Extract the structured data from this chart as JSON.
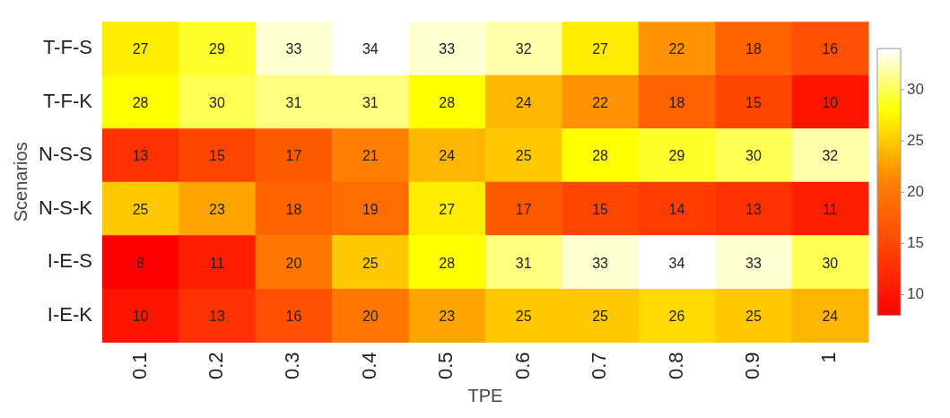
{
  "chart_data": {
    "type": "heatmap",
    "xlabel": "TPE",
    "ylabel": "Scenarios",
    "categories": [
      "0.1",
      "0.2",
      "0.3",
      "0.4",
      "0.5",
      "0.6",
      "0.7",
      "0.8",
      "0.9",
      "1"
    ],
    "y_categories": [
      "T-F-S",
      "T-F-K",
      "N-S-S",
      "N-S-K",
      "I-E-S",
      "I-E-K"
    ],
    "cells": [
      [
        27,
        29,
        33,
        34,
        33,
        32,
        27,
        22,
        18,
        16
      ],
      [
        28,
        30,
        31,
        31,
        28,
        24,
        22,
        18,
        15,
        10
      ],
      [
        13,
        15,
        17,
        21,
        24,
        25,
        28,
        29,
        30,
        32
      ],
      [
        25,
        23,
        18,
        19,
        27,
        17,
        15,
        14,
        13,
        11
      ],
      [
        8,
        11,
        20,
        25,
        28,
        31,
        33,
        34,
        33,
        30
      ],
      [
        10,
        13,
        16,
        20,
        23,
        25,
        25,
        26,
        25,
        24
      ]
    ],
    "data_labels": true,
    "clim": [
      8,
      34
    ],
    "cticks": [
      10,
      15,
      20,
      25,
      30
    ]
  }
}
